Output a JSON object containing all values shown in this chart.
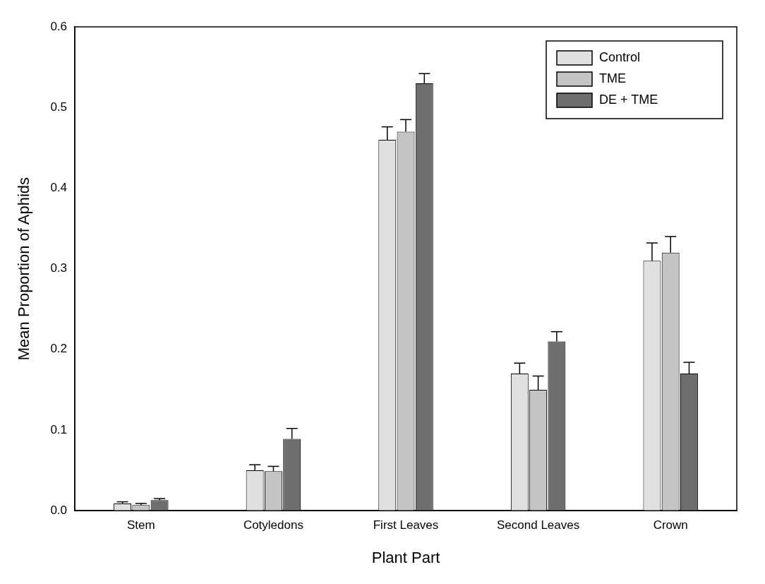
{
  "chart_data": {
    "type": "bar",
    "xlabel": "Plant Part",
    "ylabel": "Mean Proportion of Aphids",
    "categories": [
      "Stem",
      "Cotyledons",
      "First Leaves",
      "Second Leaves",
      "Crown"
    ],
    "series": [
      {
        "name": "Control",
        "color": "#e0e0e0",
        "values": [
          0.009,
          0.05,
          0.46,
          0.17,
          0.31
        ],
        "errors": [
          [
            0.009,
            0.011
          ],
          [
            0.05,
            0.057
          ],
          [
            0.46,
            0.476
          ],
          [
            0.17,
            0.183
          ],
          [
            0.31,
            0.332
          ]
        ]
      },
      {
        "name": "TME",
        "color": "#c4c4c4",
        "values": [
          0.007,
          0.049,
          0.47,
          0.15,
          0.32
        ],
        "errors": [
          [
            0.007,
            0.009
          ],
          [
            0.049,
            0.055
          ],
          [
            0.47,
            0.485
          ],
          [
            0.15,
            0.167
          ],
          [
            0.32,
            0.34
          ]
        ]
      },
      {
        "name": "DE + TME",
        "color": "#6e6e6e",
        "values": [
          0.013,
          0.089,
          0.53,
          0.21,
          0.17
        ],
        "errors": [
          [
            0.013,
            0.015
          ],
          [
            0.089,
            0.102
          ],
          [
            0.53,
            0.542
          ],
          [
            0.21,
            0.222
          ],
          [
            0.17,
            0.184
          ]
        ]
      }
    ],
    "ylim": [
      0,
      0.6
    ],
    "yticks": [
      {
        "value": 0,
        "label": "0.0"
      },
      {
        "value": 0.1,
        "label": "0.1"
      },
      {
        "value": 0.2,
        "label": "0.2"
      },
      {
        "value": 0.3,
        "label": "0.3"
      },
      {
        "value": 0.4,
        "label": "0.4"
      },
      {
        "value": 0.5,
        "label": "0.5"
      },
      {
        "value": 0.6,
        "label": "0.6"
      }
    ],
    "grid": false,
    "legend": "top right"
  }
}
